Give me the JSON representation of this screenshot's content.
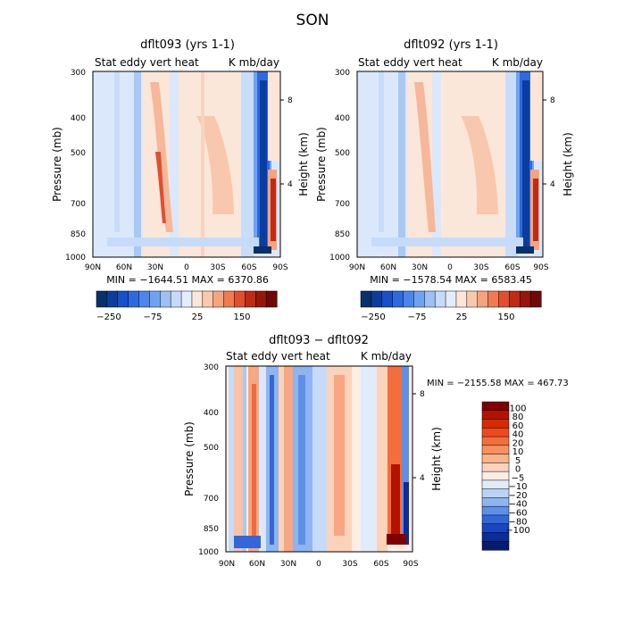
{
  "title": "SON",
  "chart_data": [
    {
      "type": "heatmap",
      "title": "dflt093 (yrs 1-1)",
      "subtitle_left": "Stat eddy vert heat",
      "subtitle_right": "K mb/day",
      "ylabel": "Pressure (mb)",
      "ylabel_right": "Height (km)",
      "x_ticks": [
        "90N",
        "60N",
        "30N",
        "0",
        "30S",
        "60S",
        "90S"
      ],
      "y_ticks": [
        "300",
        "400",
        "500",
        "700",
        "850",
        "1000"
      ],
      "y_right_ticks": [
        "8",
        "4"
      ],
      "ylim": [
        1000,
        300
      ],
      "log_pressure_axis": true,
      "stats": "MIN = −1644.51   MAX = 6370.86",
      "colorbar_labels": [
        "−250",
        "−75",
        "25",
        "150"
      ],
      "colorbar_colors": [
        "#08306b",
        "#0b3d9e",
        "#1750c8",
        "#2d6ae0",
        "#4a86ec",
        "#6fa3f2",
        "#9cc0f6",
        "#c6dbf9",
        "#e3eefc",
        "#fde6d8",
        "#fac9ac",
        "#f6a47e",
        "#f07a52",
        "#e0502e",
        "#c12b14",
        "#97160a",
        "#6e0a05"
      ]
    },
    {
      "type": "heatmap",
      "title": "dflt092 (yrs 1-1)",
      "subtitle_left": "Stat eddy vert heat",
      "subtitle_right": "K mb/day",
      "ylabel": "Pressure (mb)",
      "ylabel_right": "Height (km)",
      "x_ticks": [
        "90N",
        "60N",
        "30N",
        "0",
        "30S",
        "60S",
        "90S"
      ],
      "y_ticks": [
        "300",
        "400",
        "500",
        "700",
        "850",
        "1000"
      ],
      "y_right_ticks": [
        "8",
        "4"
      ],
      "ylim": [
        1000,
        300
      ],
      "log_pressure_axis": true,
      "stats": "MIN = −1578.54   MAX = 6583.45",
      "colorbar_labels": [
        "−250",
        "−75",
        "25",
        "150"
      ],
      "colorbar_colors": [
        "#08306b",
        "#0b3d9e",
        "#1750c8",
        "#2d6ae0",
        "#4a86ec",
        "#6fa3f2",
        "#9cc0f6",
        "#c6dbf9",
        "#e3eefc",
        "#fde6d8",
        "#fac9ac",
        "#f6a47e",
        "#f07a52",
        "#e0502e",
        "#c12b14",
        "#97160a",
        "#6e0a05"
      ]
    },
    {
      "type": "heatmap",
      "title": "dflt093 − dflt092",
      "subtitle_left": "Stat eddy vert heat",
      "subtitle_right": "K mb/day",
      "ylabel": "Pressure (mb)",
      "ylabel_right": "Height (km)",
      "x_ticks": [
        "90N",
        "60N",
        "30N",
        "0",
        "30S",
        "60S",
        "90S"
      ],
      "y_ticks": [
        "300",
        "400",
        "500",
        "700",
        "850",
        "1000"
      ],
      "y_right_ticks": [
        "8",
        "4"
      ],
      "ylim": [
        1000,
        300
      ],
      "log_pressure_axis": true,
      "stats": "MIN = −2155.58   MAX = 467.73",
      "colorbar_labels": [
        "100",
        "80",
        "60",
        "40",
        "20",
        "10",
        "5",
        "0",
        "−5",
        "−10",
        "−20",
        "−40",
        "−60",
        "−80",
        "−100"
      ],
      "colorbar_colors": [
        "#7f0000",
        "#b31200",
        "#d62a00",
        "#ee4a1e",
        "#f46d3c",
        "#f7915e",
        "#f9b38d",
        "#fbd3bb",
        "#fdeee4",
        "#e1ecfb",
        "#bcd3f6",
        "#8fb4f0",
        "#5e90e8",
        "#3366d9",
        "#1a45c0",
        "#0b2b99",
        "#061b70"
      ]
    }
  ]
}
